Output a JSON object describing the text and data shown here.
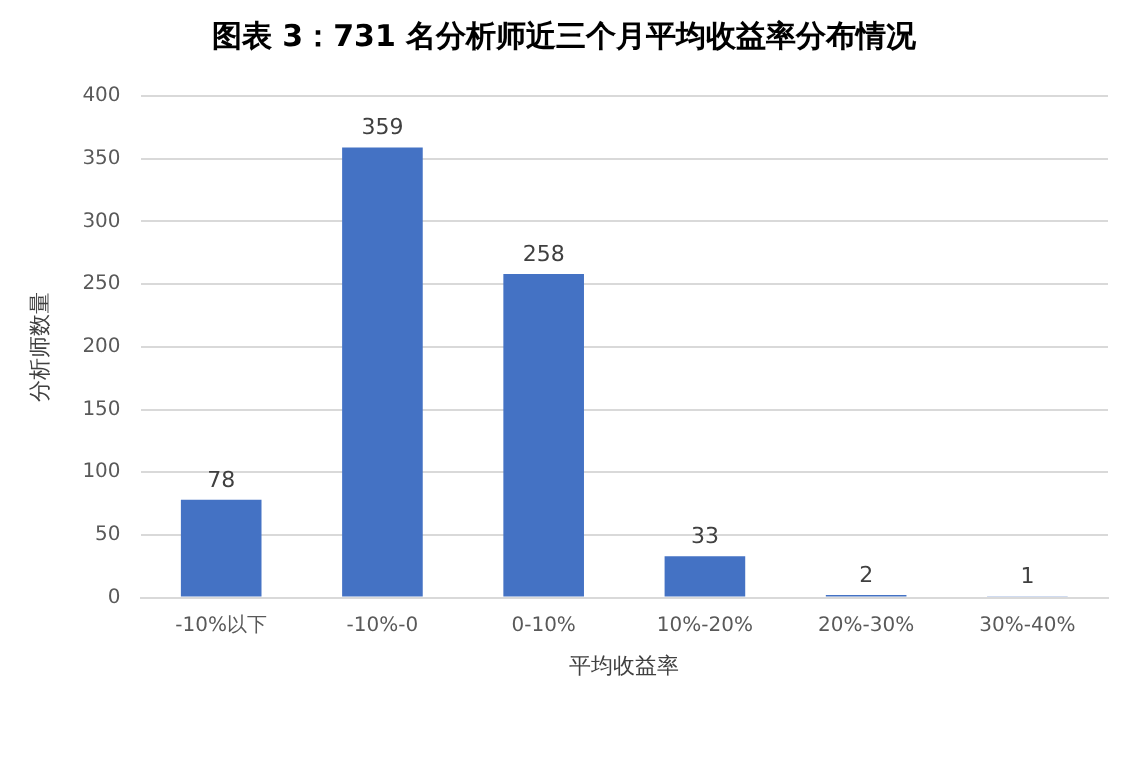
{
  "chart_data": {
    "type": "bar",
    "title": "图表 3：731 名分析师近三个月平均收益率分布情况",
    "xlabel": "平均收益率",
    "ylabel": "分析师数量",
    "categories": [
      "-10%以下",
      "-10%-0",
      "0-10%",
      "10%-20%",
      "20%-30%",
      "30%-40%"
    ],
    "values": [
      78,
      359,
      258,
      33,
      2,
      1
    ],
    "color": "#4472c4",
    "ylim": [
      0,
      400
    ],
    "yticks": [
      0,
      50,
      100,
      150,
      200,
      250,
      300,
      350,
      400
    ],
    "grid": "y",
    "data_labels": true
  }
}
